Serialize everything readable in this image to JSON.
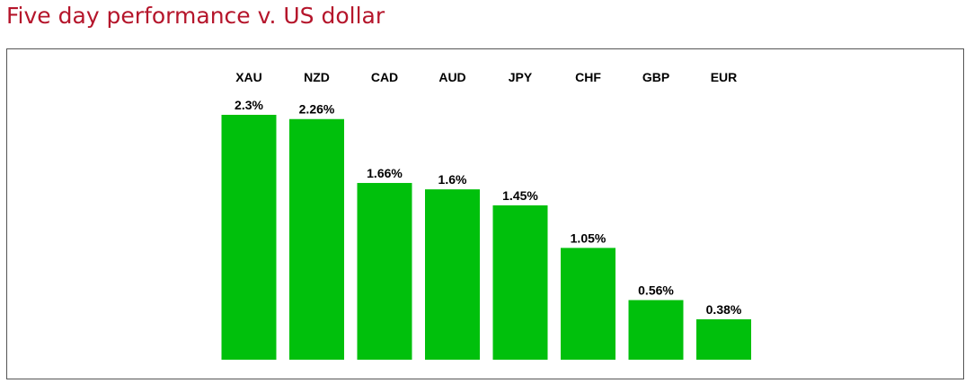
{
  "page": {
    "title": "Five day performance v. US dollar"
  },
  "colors": {
    "title": "#b5152b",
    "bar": "#00c00c",
    "frame_border": "#555555"
  },
  "chart_data": {
    "type": "bar",
    "title": "",
    "xlabel": "",
    "ylabel": "",
    "categories": [
      "XAU",
      "NZD",
      "CAD",
      "AUD",
      "JPY",
      "CHF",
      "GBP",
      "EUR"
    ],
    "values": [
      2.3,
      2.26,
      1.66,
      1.6,
      1.45,
      1.05,
      0.56,
      0.38
    ],
    "value_labels": [
      "2.3%",
      "2.26%",
      "1.66%",
      "1.6%",
      "1.45%",
      "1.05%",
      "0.56%",
      "0.38%"
    ],
    "category_label_position": "top",
    "ylim": [
      0,
      2.3
    ],
    "grid": false,
    "legend": "none"
  }
}
